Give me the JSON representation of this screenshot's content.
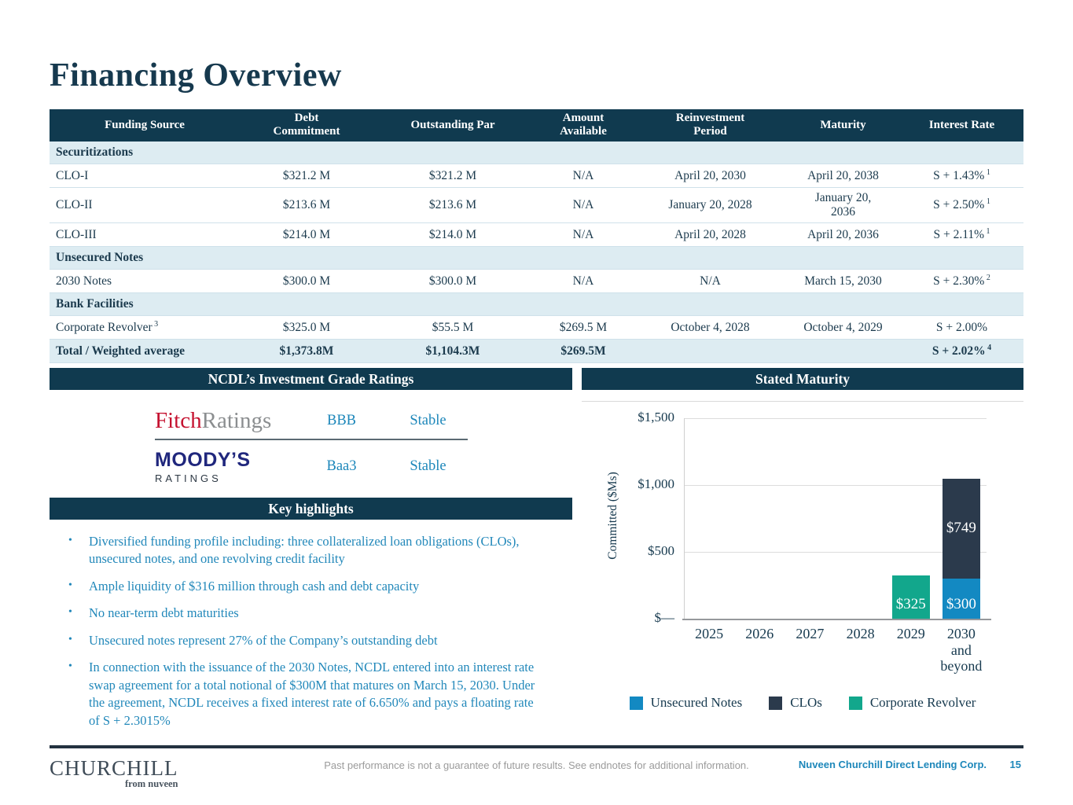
{
  "title": "Financing Overview",
  "colors": {
    "brand_dark": "#103a4f",
    "accent_teal": "#1d87ba",
    "light_band": "#ddecf2",
    "fitch_red": "#c51230",
    "moodys_navy": "#20277d"
  },
  "table": {
    "headers": [
      "Funding Source",
      "Debt\nCommitment",
      "Outstanding Par",
      "Amount\nAvailable",
      "Reinvestment\nPeriod",
      "Maturity",
      "Interest Rate"
    ],
    "rows": [
      {
        "type": "section",
        "label": "Securitizations"
      },
      {
        "type": "data",
        "name": "CLO-I",
        "name_sup": "",
        "cells": [
          "$321.2 M",
          "$321.2 M",
          "N/A",
          "April 20, 2030",
          "April 20, 2038"
        ],
        "rate": "S + 1.43%",
        "rate_sup": "1"
      },
      {
        "type": "data",
        "name": "CLO-II",
        "name_sup": "",
        "cells": [
          "$213.6 M",
          "$213.6 M",
          "N/A",
          "January 20, 2028",
          "January 20,\n2036"
        ],
        "rate": "S + 2.50%",
        "rate_sup": "1"
      },
      {
        "type": "data",
        "name": "CLO-III",
        "name_sup": "",
        "cells": [
          "$214.0 M",
          "$214.0 M",
          "N/A",
          "April 20, 2028",
          "April 20, 2036"
        ],
        "rate": "S + 2.11%",
        "rate_sup": "1"
      },
      {
        "type": "section",
        "label": "Unsecured Notes"
      },
      {
        "type": "data",
        "name": "2030 Notes",
        "name_sup": "",
        "cells": [
          "$300.0 M",
          "$300.0 M",
          "N/A",
          "N/A",
          "March 15, 2030"
        ],
        "rate": "S + 2.30%",
        "rate_sup": "2"
      },
      {
        "type": "section",
        "label": "Bank Facilities"
      },
      {
        "type": "data",
        "name": "Corporate Revolver",
        "name_sup": "3",
        "cells": [
          "$325.0 M",
          "$55.5 M",
          "$269.5 M",
          "October 4, 2028",
          "October 4, 2029"
        ],
        "rate": "S + 2.00%",
        "rate_sup": ""
      },
      {
        "type": "total",
        "name": "Total / Weighted average",
        "name_sup": "",
        "cells": [
          "$1,373.8M",
          "$1,104.3M",
          "$269.5M",
          "",
          ""
        ],
        "rate": "S + 2.02%",
        "rate_sup": "4"
      }
    ]
  },
  "ratings": {
    "header": "NCDL’s Investment Grade Ratings",
    "rows": [
      {
        "agency": "FitchRatings",
        "logo_part1": "Fitch",
        "logo_part2": "Ratings",
        "rating": "BBB",
        "outlook": "Stable"
      },
      {
        "agency": "Moody's Ratings",
        "logo_line1": "MOODY’S",
        "logo_line2": "RATINGS",
        "rating": "Baa3",
        "outlook": "Stable"
      }
    ]
  },
  "highlights": {
    "header": "Key highlights",
    "bullets": [
      "Diversified funding profile including: three collateralized loan obligations (CLOs), unsecured notes, and one revolving credit facility",
      "Ample liquidity of $316 million through cash and debt capacity",
      "No near-term debt maturities",
      "Unsecured notes represent 27% of the Company’s outstanding debt",
      "In connection with the issuance of the 2030 Notes, NCDL entered into an interest rate swap agreement for a total notional of $300M that matures on March 15, 2030. Under the agreement, NCDL receives a fixed interest rate of 6.650% and pays a floating rate of  S + 2.3015%"
    ]
  },
  "chart_panel": {
    "header": "Stated Maturity"
  },
  "chart_data": {
    "type": "bar",
    "stacked": true,
    "title": "Stated Maturity",
    "ylabel": "Committed ($Ms)",
    "ylim": [
      0,
      1500
    ],
    "grid": true,
    "legend_position": "bottom",
    "bar_label_prefix": "$",
    "yticks": [
      {
        "label": "$1,500",
        "value": 1500
      },
      {
        "label": "$1,000",
        "value": 1000
      },
      {
        "label": "$500",
        "value": 500
      },
      {
        "label": "$—",
        "value": 0
      }
    ],
    "categories": [
      "2025",
      "2026",
      "2027",
      "2028",
      "2029",
      "2030\nand\nbeyond"
    ],
    "series": [
      {
        "name": "Unsecured Notes",
        "color": "#1389c2",
        "values": [
          0,
          0,
          0,
          0,
          0,
          300
        ]
      },
      {
        "name": "CLOs",
        "color": "#2b3a4c",
        "values": [
          0,
          0,
          0,
          0,
          0,
          749
        ]
      },
      {
        "name": "Corporate Revolver",
        "color": "#12a78c",
        "values": [
          0,
          0,
          0,
          0,
          325,
          0
        ]
      }
    ]
  },
  "footer": {
    "logo_line1": "CHURCHILL",
    "logo_line2": "from nuveen",
    "disclaimer": "Past performance is not a guarantee of future results. See endnotes for additional information.",
    "company": "Nuveen Churchill Direct Lending Corp.",
    "page_number": "15"
  }
}
